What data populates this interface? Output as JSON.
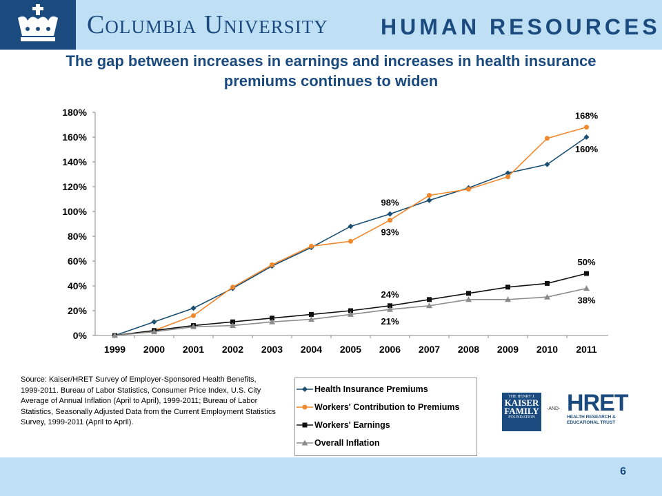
{
  "header": {
    "university": "Columbia University",
    "department": "HUMAN RESOURCES"
  },
  "slide": {
    "title": "The gap between increases in earnings and increases in health insurance premiums continues to widen",
    "page_number": "6"
  },
  "source_note": "Source:  Kaiser/HRET Survey of Employer-Sponsored Health Benefits, 1999-2011.  Bureau  of Labor Statistics, Consumer Price Index, U.S. City Average of Annual Inflation (April to April), 1999-2011;  Bureau  of Labor Statistics, Seasonally Adjusted Data from the Current  Employment Statistics Survey, 1999-2011  (April to April).",
  "logos": {
    "kaiser_line1": "THE HENRY J.",
    "kaiser_line2": "KAISER",
    "kaiser_line3": "FAMILY",
    "kaiser_line4": "FOUNDATION",
    "and": "-AND-",
    "hret": "HRET",
    "hret_line1": "HEALTH RESEARCH &",
    "hret_line2": "EDUCATIONAL TRUST"
  },
  "chart_data": {
    "type": "line",
    "categories": [
      "1999",
      "2000",
      "2001",
      "2002",
      "2003",
      "2004",
      "2005",
      "2006",
      "2007",
      "2008",
      "2009",
      "2010",
      "2011"
    ],
    "ylim": [
      0,
      180
    ],
    "yticks": [
      0,
      20,
      40,
      60,
      80,
      100,
      120,
      140,
      160,
      180
    ],
    "ytick_labels": [
      "0%",
      "20%",
      "40%",
      "60%",
      "80%",
      "100%",
      "120%",
      "140%",
      "160%",
      "180%"
    ],
    "legend_position": "bottom",
    "series": [
      {
        "name": "Health Insurance Premiums",
        "color": "#1b4f72",
        "marker": "diamond",
        "values": [
          0,
          11,
          22,
          38,
          56,
          71,
          88,
          98,
          109,
          119,
          131,
          138,
          160
        ]
      },
      {
        "name": "Workers' Contribution to Premiums",
        "color": "#f0882d",
        "marker": "circle",
        "values": [
          0,
          4,
          16,
          39,
          57,
          72,
          76,
          93,
          113,
          118,
          128,
          159,
          168
        ]
      },
      {
        "name": "Workers' Earnings",
        "color": "#111111",
        "marker": "square",
        "values": [
          0,
          4,
          8,
          11,
          14,
          17,
          20,
          24,
          29,
          34,
          39,
          42,
          50
        ]
      },
      {
        "name": "Overall Inflation",
        "color": "#8c8c8c",
        "marker": "triangle",
        "values": [
          0,
          3,
          7,
          8,
          11,
          13,
          17,
          21,
          24,
          29,
          29,
          31,
          38
        ]
      }
    ],
    "annotations": [
      {
        "text": "168%",
        "x": "2011",
        "y": 168,
        "position": "above"
      },
      {
        "text": "160%",
        "x": "2011",
        "y": 160,
        "position": "below"
      },
      {
        "text": "98%",
        "x": "2006",
        "y": 98,
        "position": "above"
      },
      {
        "text": "93%",
        "x": "2006",
        "y": 93,
        "position": "below"
      },
      {
        "text": "50%",
        "x": "2011",
        "y": 50,
        "position": "above"
      },
      {
        "text": "38%",
        "x": "2011",
        "y": 38,
        "position": "below"
      },
      {
        "text": "24%",
        "x": "2006",
        "y": 24,
        "position": "above"
      },
      {
        "text": "21%",
        "x": "2006",
        "y": 21,
        "position": "below"
      }
    ]
  }
}
